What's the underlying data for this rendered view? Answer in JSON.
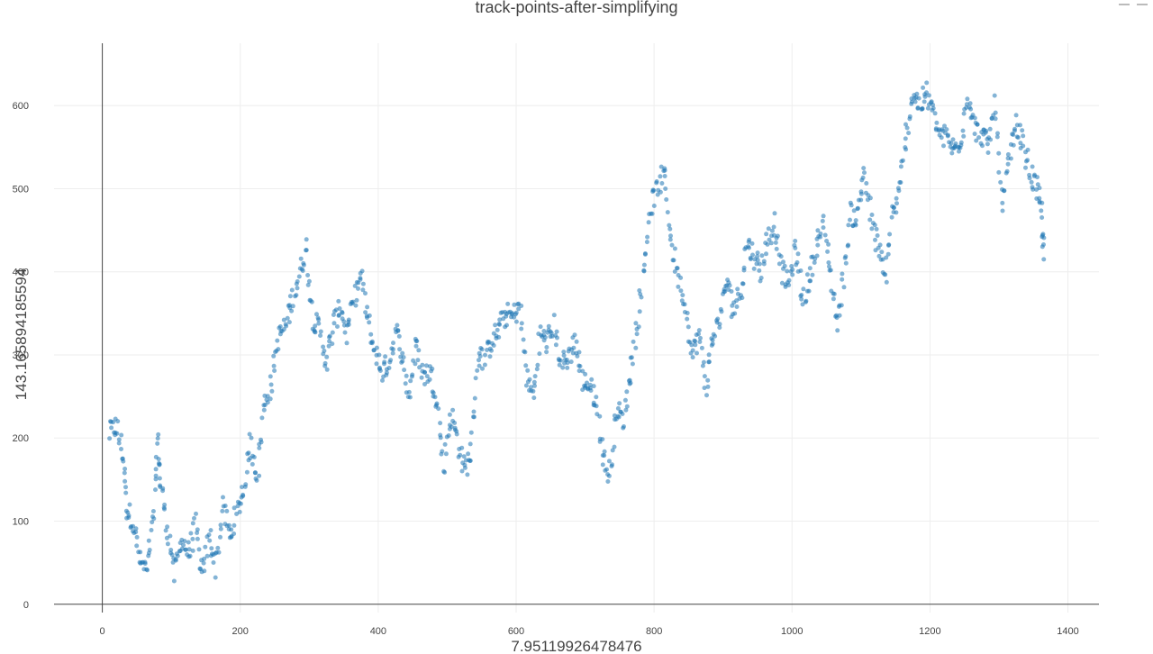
{
  "chart_data": {
    "type": "scatter",
    "title": "track-points-after-simplifying",
    "xlabel": "7.95119926478476",
    "ylabel": "143.165894185594",
    "xlim": [
      -70,
      1445
    ],
    "ylim": [
      -10,
      675
    ],
    "xticks": [
      0,
      200,
      400,
      600,
      800,
      1000,
      1200,
      1400
    ],
    "yticks": [
      0,
      100,
      200,
      300,
      400,
      500,
      600
    ],
    "grid": true,
    "marker_color": "#1f77b4",
    "anchors": [
      [
        10,
        205
      ],
      [
        20,
        215
      ],
      [
        30,
        180
      ],
      [
        35,
        115
      ],
      [
        45,
        100
      ],
      [
        55,
        50
      ],
      [
        65,
        40
      ],
      [
        75,
        105
      ],
      [
        80,
        200
      ],
      [
        85,
        140
      ],
      [
        95,
        90
      ],
      [
        105,
        35
      ],
      [
        115,
        80
      ],
      [
        125,
        60
      ],
      [
        135,
        95
      ],
      [
        145,
        30
      ],
      [
        155,
        85
      ],
      [
        165,
        45
      ],
      [
        175,
        120
      ],
      [
        185,
        80
      ],
      [
        195,
        110
      ],
      [
        205,
        140
      ],
      [
        215,
        195
      ],
      [
        225,
        155
      ],
      [
        235,
        240
      ],
      [
        245,
        265
      ],
      [
        255,
        320
      ],
      [
        265,
        335
      ],
      [
        275,
        365
      ],
      [
        285,
        395
      ],
      [
        295,
        430
      ],
      [
        305,
        345
      ],
      [
        315,
        330
      ],
      [
        325,
        290
      ],
      [
        335,
        335
      ],
      [
        345,
        360
      ],
      [
        355,
        325
      ],
      [
        365,
        370
      ],
      [
        375,
        395
      ],
      [
        385,
        340
      ],
      [
        395,
        305
      ],
      [
        405,
        280
      ],
      [
        415,
        290
      ],
      [
        425,
        330
      ],
      [
        435,
        300
      ],
      [
        445,
        250
      ],
      [
        455,
        315
      ],
      [
        465,
        275
      ],
      [
        475,
        280
      ],
      [
        485,
        250
      ],
      [
        495,
        165
      ],
      [
        505,
        230
      ],
      [
        515,
        200
      ],
      [
        525,
        160
      ],
      [
        535,
        185
      ],
      [
        545,
        300
      ],
      [
        555,
        295
      ],
      [
        565,
        320
      ],
      [
        575,
        330
      ],
      [
        585,
        350
      ],
      [
        595,
        345
      ],
      [
        605,
        360
      ],
      [
        615,
        275
      ],
      [
        625,
        250
      ],
      [
        635,
        325
      ],
      [
        645,
        315
      ],
      [
        655,
        335
      ],
      [
        665,
        290
      ],
      [
        675,
        295
      ],
      [
        685,
        320
      ],
      [
        695,
        270
      ],
      [
        705,
        265
      ],
      [
        715,
        250
      ],
      [
        725,
        185
      ],
      [
        735,
        150
      ],
      [
        745,
        235
      ],
      [
        755,
        220
      ],
      [
        765,
        275
      ],
      [
        775,
        330
      ],
      [
        785,
        400
      ],
      [
        795,
        480
      ],
      [
        805,
        500
      ],
      [
        815,
        520
      ],
      [
        825,
        435
      ],
      [
        835,
        395
      ],
      [
        845,
        360
      ],
      [
        855,
        300
      ],
      [
        865,
        325
      ],
      [
        875,
        260
      ],
      [
        885,
        320
      ],
      [
        895,
        345
      ],
      [
        905,
        390
      ],
      [
        915,
        355
      ],
      [
        925,
        375
      ],
      [
        935,
        435
      ],
      [
        945,
        420
      ],
      [
        955,
        400
      ],
      [
        965,
        440
      ],
      [
        975,
        460
      ],
      [
        985,
        400
      ],
      [
        995,
        385
      ],
      [
        1005,
        430
      ],
      [
        1015,
        365
      ],
      [
        1025,
        390
      ],
      [
        1035,
        430
      ],
      [
        1045,
        455
      ],
      [
        1055,
        405
      ],
      [
        1065,
        335
      ],
      [
        1075,
        395
      ],
      [
        1085,
        470
      ],
      [
        1095,
        465
      ],
      [
        1105,
        525
      ],
      [
        1115,
        460
      ],
      [
        1125,
        430
      ],
      [
        1135,
        390
      ],
      [
        1145,
        470
      ],
      [
        1155,
        490
      ],
      [
        1165,
        560
      ],
      [
        1175,
        615
      ],
      [
        1185,
        600
      ],
      [
        1195,
        615
      ],
      [
        1205,
        590
      ],
      [
        1215,
        565
      ],
      [
        1225,
        560
      ],
      [
        1235,
        545
      ],
      [
        1245,
        560
      ],
      [
        1255,
        615
      ],
      [
        1265,
        570
      ],
      [
        1275,
        565
      ],
      [
        1285,
        550
      ],
      [
        1295,
        605
      ],
      [
        1305,
        470
      ],
      [
        1315,
        540
      ],
      [
        1325,
        575
      ],
      [
        1335,
        555
      ],
      [
        1345,
        520
      ],
      [
        1355,
        500
      ],
      [
        1362,
        470
      ],
      [
        1365,
        415
      ]
    ]
  }
}
